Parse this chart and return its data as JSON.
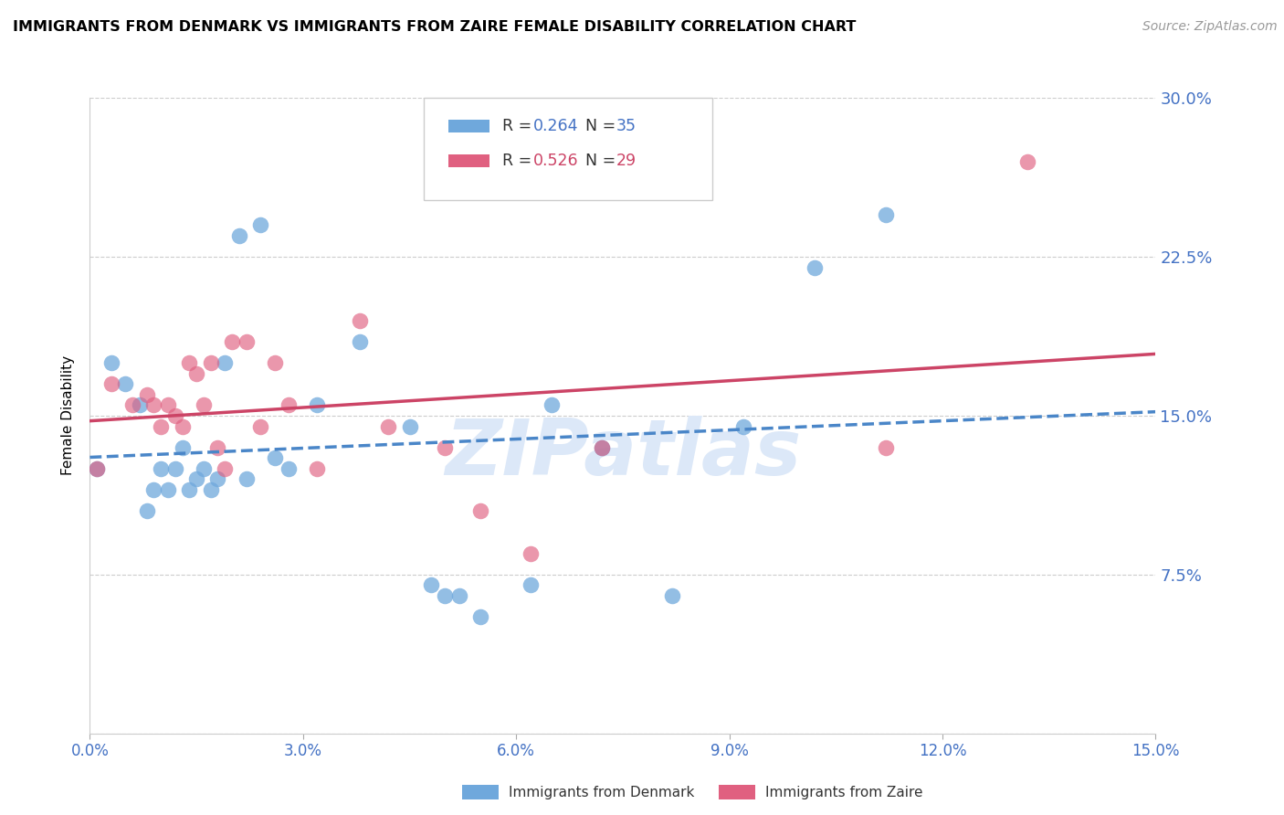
{
  "title": "IMMIGRANTS FROM DENMARK VS IMMIGRANTS FROM ZAIRE FEMALE DISABILITY CORRELATION CHART",
  "source": "Source: ZipAtlas.com",
  "ylabel": "Female Disability",
  "xlim": [
    0.0,
    0.15
  ],
  "ylim": [
    0.0,
    0.3
  ],
  "xticks": [
    0.0,
    0.03,
    0.06,
    0.09,
    0.12,
    0.15
  ],
  "yticks": [
    0.0,
    0.075,
    0.15,
    0.225,
    0.3
  ],
  "xtick_labels": [
    "0.0%",
    "3.0%",
    "6.0%",
    "9.0%",
    "12.0%",
    "15.0%"
  ],
  "ytick_labels_right": [
    "",
    "7.5%",
    "15.0%",
    "22.5%",
    "30.0%"
  ],
  "denmark_R": "0.264",
  "denmark_N": "35",
  "zaire_R": "0.526",
  "zaire_N": "29",
  "denmark_color": "#6fa8dc",
  "zaire_color": "#e06080",
  "denmark_line_color": "#4a86c8",
  "zaire_line_color": "#cc4466",
  "watermark": "ZIPatlas",
  "watermark_color": "#dce8f8",
  "denmark_x": [
    0.001,
    0.003,
    0.005,
    0.007,
    0.008,
    0.009,
    0.01,
    0.011,
    0.012,
    0.013,
    0.014,
    0.015,
    0.016,
    0.017,
    0.018,
    0.019,
    0.021,
    0.022,
    0.024,
    0.026,
    0.028,
    0.032,
    0.038,
    0.045,
    0.048,
    0.05,
    0.052,
    0.055,
    0.062,
    0.065,
    0.072,
    0.082,
    0.092,
    0.102,
    0.112
  ],
  "denmark_y": [
    0.125,
    0.175,
    0.165,
    0.155,
    0.105,
    0.115,
    0.125,
    0.115,
    0.125,
    0.135,
    0.115,
    0.12,
    0.125,
    0.115,
    0.12,
    0.175,
    0.235,
    0.12,
    0.24,
    0.13,
    0.125,
    0.155,
    0.185,
    0.145,
    0.07,
    0.065,
    0.065,
    0.055,
    0.07,
    0.155,
    0.135,
    0.065,
    0.145,
    0.22,
    0.245
  ],
  "zaire_x": [
    0.001,
    0.003,
    0.006,
    0.008,
    0.009,
    0.01,
    0.011,
    0.012,
    0.013,
    0.014,
    0.015,
    0.016,
    0.017,
    0.018,
    0.019,
    0.02,
    0.022,
    0.024,
    0.026,
    0.028,
    0.032,
    0.038,
    0.042,
    0.05,
    0.055,
    0.062,
    0.072,
    0.112,
    0.132
  ],
  "zaire_y": [
    0.125,
    0.165,
    0.155,
    0.16,
    0.155,
    0.145,
    0.155,
    0.15,
    0.145,
    0.175,
    0.17,
    0.155,
    0.175,
    0.135,
    0.125,
    0.185,
    0.185,
    0.145,
    0.175,
    0.155,
    0.125,
    0.195,
    0.145,
    0.135,
    0.105,
    0.085,
    0.135,
    0.135,
    0.27
  ]
}
